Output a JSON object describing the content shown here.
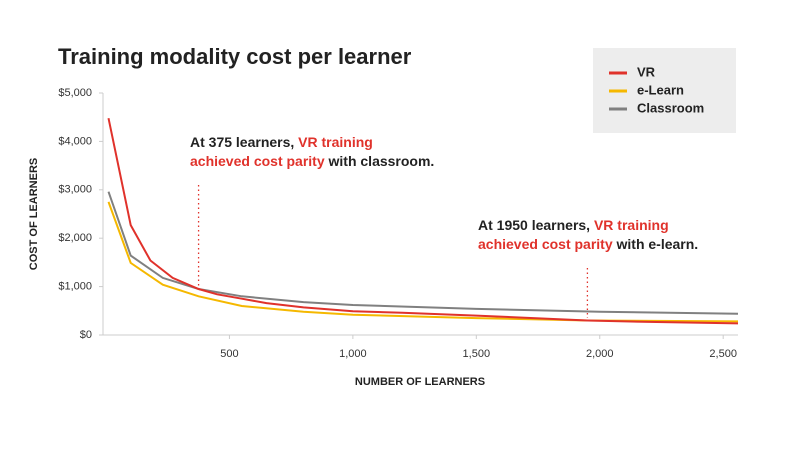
{
  "chart_data": {
    "type": "line",
    "title": "Training modality cost per learner",
    "x_label": "NUMBER OF LEARNERS",
    "y_label": "COST OF LEARNERS",
    "xlim": [
      0,
      2560
    ],
    "ylim": [
      0,
      5000
    ],
    "xticks": [
      500,
      {
        "value": 1000,
        "label": "1,000"
      },
      {
        "value": 1500,
        "label": "1,500"
      },
      {
        "value": 2000,
        "label": "2,000"
      },
      {
        "value": 2500,
        "label": "2,500"
      }
    ],
    "yticks": [
      {
        "value": 0,
        "label": "$0"
      },
      {
        "value": 1000,
        "label": "$1,000"
      },
      {
        "value": 2000,
        "label": "$2,000"
      },
      {
        "value": 3000,
        "label": "$3,000"
      },
      {
        "value": 4000,
        "label": "$4,000"
      },
      {
        "value": 5000,
        "label": "$5,000"
      }
    ],
    "legend": "top-right",
    "series": [
      {
        "name": "VR",
        "color": "#e0322b",
        "x": [
          10,
          100,
          180,
          270,
          375,
          450,
          550,
          650,
          800,
          1000,
          1200,
          1500,
          1950,
          2200,
          2560
        ],
        "values": [
          4480,
          2270,
          1540,
          1180,
          950,
          840,
          750,
          660,
          570,
          490,
          460,
          400,
          300,
          270,
          240
        ]
      },
      {
        "name": "e-Learn",
        "color": "#f5b800",
        "x": [
          10,
          100,
          230,
          375,
          550,
          800,
          1000,
          1500,
          1950,
          2560
        ],
        "values": [
          2750,
          1490,
          1040,
          800,
          600,
          480,
          420,
          350,
          300,
          280
        ]
      },
      {
        "name": "Classroom",
        "color": "#808080",
        "x": [
          10,
          100,
          230,
          375,
          550,
          800,
          1000,
          1500,
          2000,
          2560
        ],
        "values": [
          2960,
          1640,
          1180,
          950,
          800,
          680,
          620,
          540,
          480,
          440
        ]
      }
    ],
    "annotations": [
      {
        "x": 375,
        "lines": [
          [
            {
              "text": "At 375 learners, ",
              "color": "#222222"
            },
            {
              "text": "VR training",
              "color": "#e0322b"
            }
          ],
          [
            {
              "text": "achieved cost parity",
              "color": "#e0322b"
            },
            {
              "text": " with classroom.",
              "color": "#222222"
            }
          ]
        ]
      },
      {
        "x": 1950,
        "lines": [
          [
            {
              "text": "At 1950 learners, ",
              "color": "#222222"
            },
            {
              "text": "VR training",
              "color": "#e0322b"
            }
          ],
          [
            {
              "text": "achieved cost parity",
              "color": "#e0322b"
            },
            {
              "text": " with e-learn.",
              "color": "#222222"
            }
          ]
        ]
      }
    ]
  }
}
